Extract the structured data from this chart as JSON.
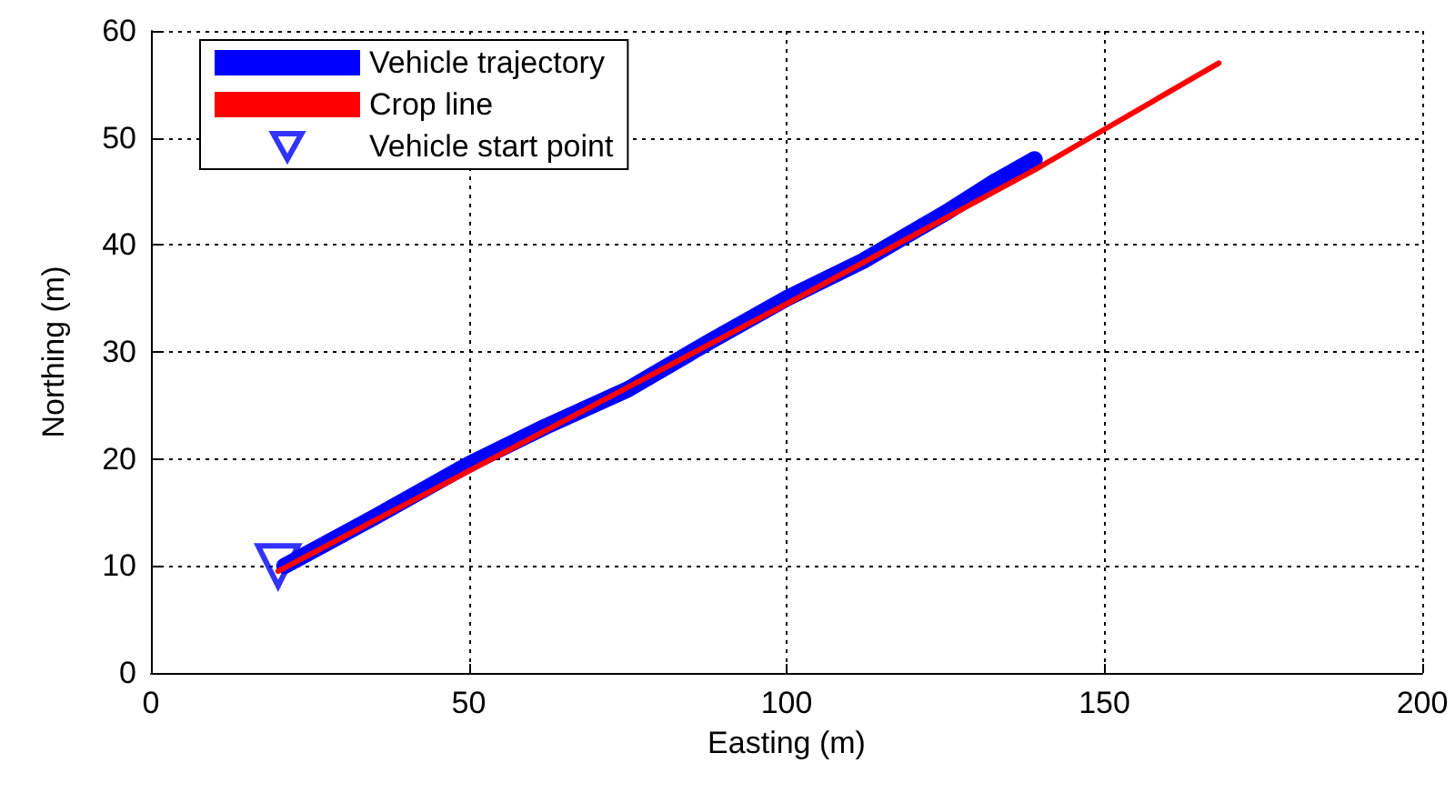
{
  "chart_data": {
    "type": "line",
    "xlabel": "Easting (m)",
    "ylabel": "Northing (m)",
    "xlim": [
      0,
      200
    ],
    "xticks": [
      0,
      50,
      100,
      150,
      200
    ],
    "ylim": [
      0,
      60
    ],
    "yticks": [
      0,
      10,
      20,
      30,
      40,
      50,
      60
    ],
    "grid": true,
    "legend": "top left",
    "series": [
      {
        "name": "Vehicle trajectory",
        "color": "#0000ff",
        "marker": "none",
        "x": [
          21,
          35,
          50,
          62,
          75,
          88,
          100,
          112,
          125,
          133,
          139
        ],
        "values": [
          10,
          14.5,
          19.5,
          23,
          26.5,
          31,
          35,
          38.5,
          43,
          46,
          48
        ]
      },
      {
        "name": "Crop line",
        "color": "#ff0000",
        "marker": "none",
        "x": [
          20,
          60,
          100,
          139,
          150,
          168
        ],
        "values": [
          9.5,
          22,
          34.5,
          47,
          50.8,
          57
        ]
      },
      {
        "name": "Vehicle start point",
        "type": "scatter",
        "color": "#0000ff",
        "marker": "triangle",
        "x": [
          20
        ],
        "values": [
          10
        ]
      }
    ]
  }
}
